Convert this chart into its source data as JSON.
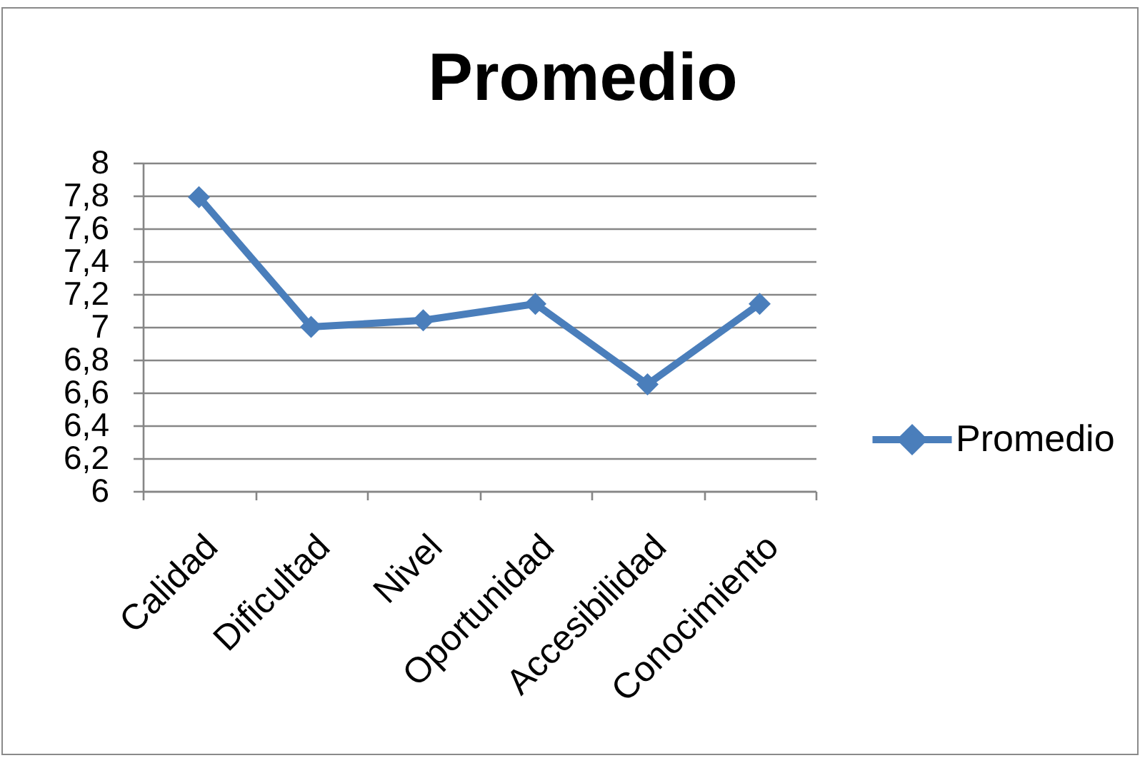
{
  "chart_data": {
    "type": "line",
    "title": "Promedio",
    "categories": [
      "Calidad",
      "Dificultad",
      "Nivel",
      "Oportunidad",
      "Accesibilidad",
      "Conocimiento"
    ],
    "series": [
      {
        "name": "Promedio",
        "color": "#4a7ebb",
        "values": [
          7.79,
          7.0,
          7.04,
          7.14,
          6.65,
          7.14
        ]
      }
    ],
    "ylim": [
      6,
      8
    ],
    "yticks": [
      6,
      {
        "value": 6.2,
        "label": "6,2"
      },
      {
        "value": 6.4,
        "label": "6,4"
      },
      {
        "value": 6.6,
        "label": "6,6"
      },
      {
        "value": 6.8,
        "label": "6,8"
      },
      7,
      {
        "value": 7.2,
        "label": "7,2"
      },
      {
        "value": 7.4,
        "label": "7,4"
      },
      {
        "value": 7.6,
        "label": "7,6"
      },
      {
        "value": 7.8,
        "label": "7,8"
      },
      8
    ],
    "grid": "y",
    "legend": "right",
    "marker": "diamond"
  }
}
